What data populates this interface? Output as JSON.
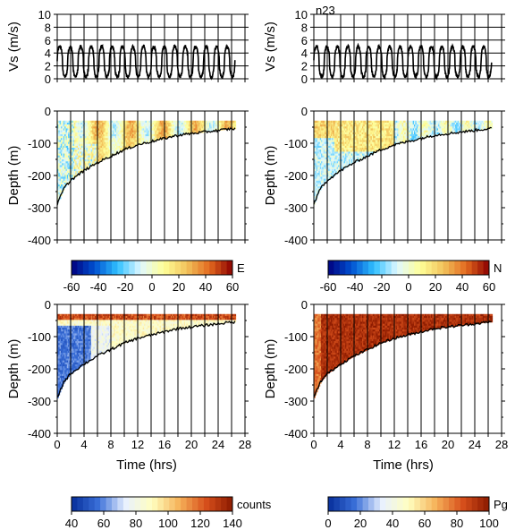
{
  "chart_data": [
    {
      "id": "vs-left",
      "type": "line",
      "title": "",
      "xlabel": "",
      "ylabel": "Vs (m/s)",
      "xlim": [
        0,
        28
      ],
      "ylim": [
        0,
        10
      ],
      "yticks": [
        0,
        2,
        4,
        6,
        8,
        10
      ],
      "grid": true,
      "series": [
        {
          "x_range": [
            0,
            26.5
          ],
          "cycles": 17,
          "low": 0.3,
          "high": 5.0
        }
      ]
    },
    {
      "id": "vs-right",
      "type": "line",
      "title": "n23",
      "xlabel": "",
      "ylabel": "Vs (m/s)",
      "xlim": [
        0,
        28
      ],
      "ylim": [
        0,
        10
      ],
      "yticks": [
        0,
        2,
        4,
        6,
        8,
        10
      ],
      "grid": true,
      "series": [
        {
          "x_range": [
            0,
            26.5
          ],
          "cycles": 17,
          "low": 0.3,
          "high": 5.0
        }
      ]
    },
    {
      "id": "east",
      "type": "heatmap",
      "xlabel": "",
      "ylabel": "Depth (m)",
      "xlim": [
        0,
        28
      ],
      "ylim": [
        -400,
        0
      ],
      "yticks": [
        0,
        -100,
        -200,
        -300,
        -400
      ],
      "bottom_depth": [
        [
          0,
          -290
        ],
        [
          1,
          -240
        ],
        [
          2,
          -215
        ],
        [
          4,
          -185
        ],
        [
          6,
          -160
        ],
        [
          8,
          -140
        ],
        [
          10,
          -120
        ],
        [
          12,
          -105
        ],
        [
          14,
          -95
        ],
        [
          16,
          -85
        ],
        [
          18,
          -75
        ],
        [
          20,
          -70
        ],
        [
          22,
          -65
        ],
        [
          24,
          -60
        ],
        [
          26,
          -55
        ],
        [
          26.5,
          -55
        ]
      ],
      "top_depth": -30,
      "value_range": [
        -30,
        40
      ],
      "colorbar": {
        "label": "E",
        "ticks": [
          -60,
          -40,
          -20,
          0,
          20,
          40,
          60
        ]
      }
    },
    {
      "id": "north",
      "type": "heatmap",
      "xlabel": "",
      "ylabel": "Depth (m)",
      "xlim": [
        0,
        28
      ],
      "ylim": [
        -400,
        0
      ],
      "yticks": [
        0,
        -100,
        -200,
        -300,
        -400
      ],
      "bottom_depth": [
        [
          0,
          -290
        ],
        [
          1,
          -240
        ],
        [
          2,
          -215
        ],
        [
          4,
          -185
        ],
        [
          6,
          -160
        ],
        [
          8,
          -140
        ],
        [
          10,
          -120
        ],
        [
          12,
          -105
        ],
        [
          14,
          -95
        ],
        [
          16,
          -85
        ],
        [
          18,
          -75
        ],
        [
          20,
          -70
        ],
        [
          22,
          -65
        ],
        [
          24,
          -60
        ],
        [
          26,
          -55
        ],
        [
          26.5,
          -55
        ]
      ],
      "top_depth": -30,
      "value_range": [
        -30,
        40
      ],
      "colorbar": {
        "label": "N",
        "ticks": [
          -60,
          -40,
          -20,
          0,
          20,
          40,
          60
        ]
      }
    },
    {
      "id": "counts",
      "type": "heatmap",
      "xlabel": "Time (hrs)",
      "ylabel": "Depth (m)",
      "xlim": [
        0,
        28
      ],
      "ylim": [
        -400,
        0
      ],
      "xticks": [
        0,
        4,
        8,
        12,
        16,
        20,
        24,
        28
      ],
      "yticks": [
        0,
        -100,
        -200,
        -300,
        -400
      ],
      "bottom_depth": [
        [
          0,
          -290
        ],
        [
          1,
          -240
        ],
        [
          2,
          -215
        ],
        [
          4,
          -185
        ],
        [
          6,
          -160
        ],
        [
          8,
          -140
        ],
        [
          10,
          -120
        ],
        [
          12,
          -105
        ],
        [
          14,
          -95
        ],
        [
          16,
          -85
        ],
        [
          18,
          -75
        ],
        [
          20,
          -70
        ],
        [
          22,
          -65
        ],
        [
          24,
          -60
        ],
        [
          26,
          -55
        ],
        [
          26.5,
          -55
        ]
      ],
      "top_depth": -30,
      "value_range": [
        50,
        140
      ],
      "colorbar": {
        "label": "counts",
        "ticks": [
          40,
          60,
          80,
          100,
          120,
          140
        ]
      }
    },
    {
      "id": "pg",
      "type": "heatmap",
      "xlabel": "Time (hrs)",
      "ylabel": "Depth (m)",
      "xlim": [
        0,
        28
      ],
      "ylim": [
        -400,
        0
      ],
      "xticks": [
        0,
        4,
        8,
        12,
        16,
        20,
        24,
        28
      ],
      "yticks": [
        0,
        -100,
        -200,
        -300,
        -400
      ],
      "bottom_depth": [
        [
          0,
          -290
        ],
        [
          1,
          -240
        ],
        [
          2,
          -215
        ],
        [
          4,
          -185
        ],
        [
          6,
          -160
        ],
        [
          8,
          -140
        ],
        [
          10,
          -120
        ],
        [
          12,
          -105
        ],
        [
          14,
          -95
        ],
        [
          16,
          -85
        ],
        [
          18,
          -75
        ],
        [
          20,
          -70
        ],
        [
          22,
          -65
        ],
        [
          24,
          -60
        ],
        [
          26,
          -55
        ],
        [
          26.5,
          -55
        ]
      ],
      "top_depth": -30,
      "value_range": [
        60,
        100
      ],
      "colorbar": {
        "label": "Pg",
        "ticks": [
          0,
          20,
          40,
          60,
          80,
          100
        ]
      }
    }
  ],
  "colors": {
    "scale_E_N": [
      "#00007f",
      "#0050d0",
      "#30c0ff",
      "#e0f8ff",
      "#ffff99",
      "#f2c35c",
      "#e36a1f",
      "#8b0000"
    ],
    "scale_counts_pg": [
      "#062e9a",
      "#3a6fd8",
      "#e8f0ff",
      "#ffffc0",
      "#f6b35a",
      "#d8501c",
      "#8b1a00"
    ]
  }
}
